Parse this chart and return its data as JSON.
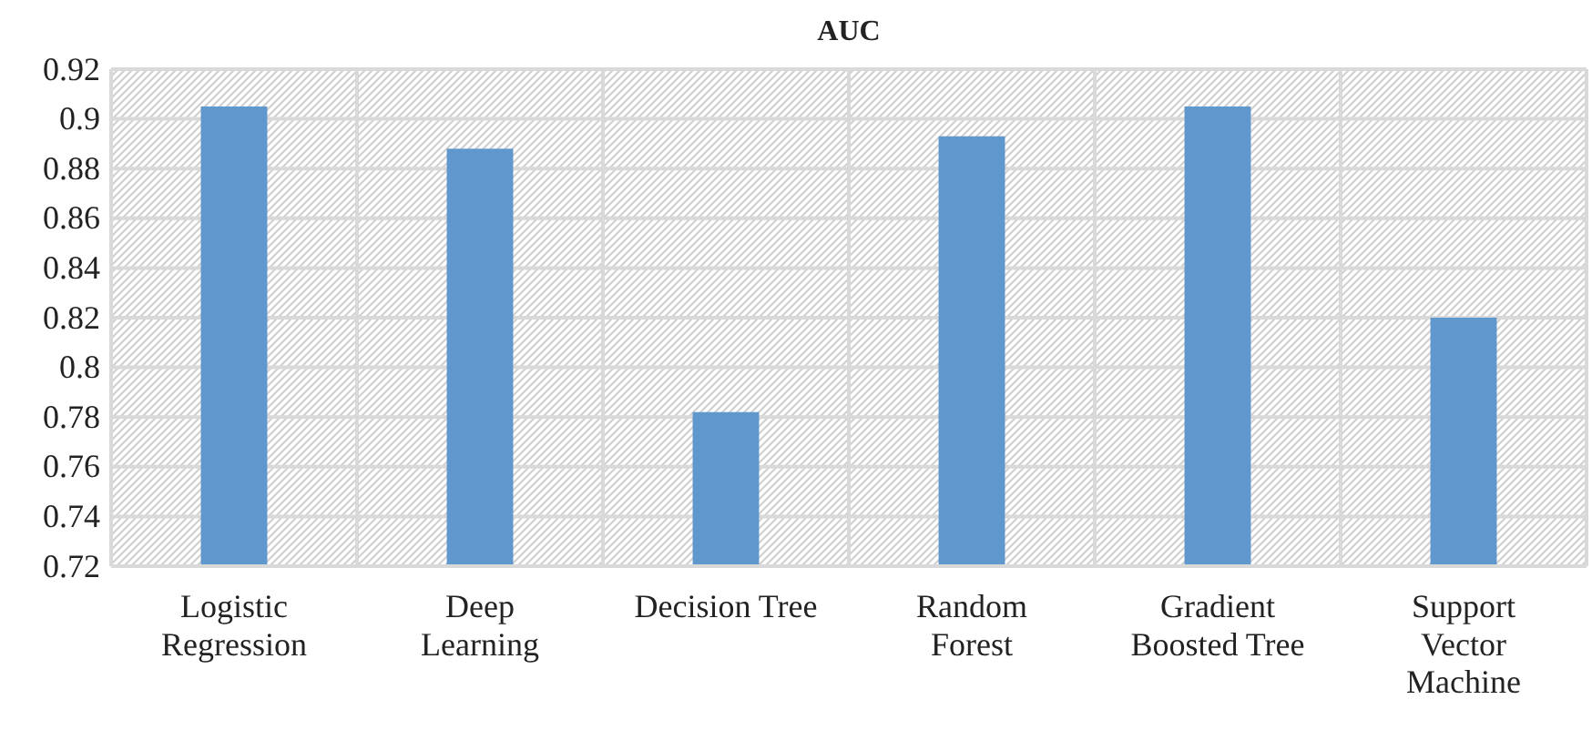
{
  "chart_data": {
    "type": "bar",
    "title": "AUC",
    "categories": [
      "Logistic\nRegression",
      "Deep\nLearning",
      "Decision Tree",
      "Random\nForest",
      "Gradient\nBoosted Tree",
      "Support\nVector\nMachine"
    ],
    "values": [
      0.905,
      0.888,
      0.782,
      0.893,
      0.905,
      0.82
    ],
    "color": "#6097cc",
    "ylim": [
      0.72,
      0.92
    ],
    "yticks": [
      0.72,
      0.74,
      0.76,
      0.78,
      0.8,
      0.82,
      0.84,
      0.86,
      0.88,
      0.9,
      0.92
    ],
    "grid": true
  }
}
